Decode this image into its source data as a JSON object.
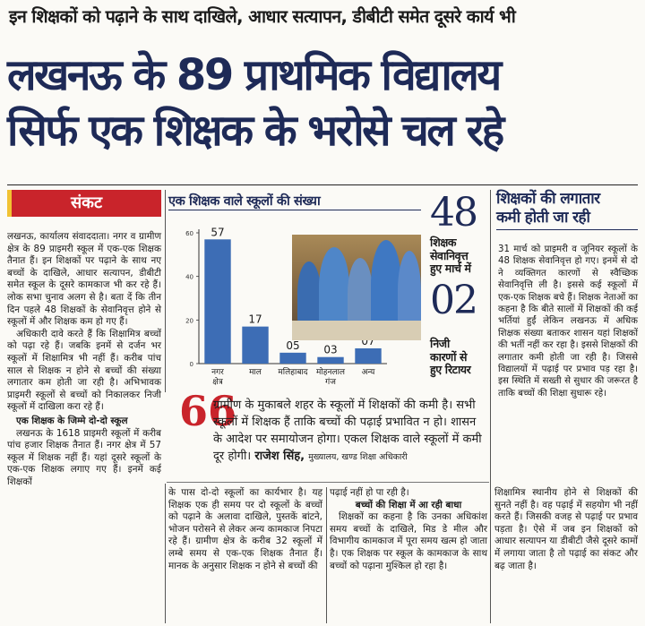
{
  "kicker": "इन शिक्षकों को पढ़ाने के साथ दाखिले, आधार सत्यापन, डीबीटी समेत दूसरे कार्य भी",
  "headline": {
    "line1": "लखनऊ के 89 प्राथमिक विद्यालय",
    "line2": "सिर्फ एक शिक्षक के भरोसे चल रहे"
  },
  "section_tag": "संकट",
  "left_column": {
    "p1": "लखनऊ, कार्यालय संवाददाता। नगर व ग्रामीण क्षेत्र के 89 प्राइमरी स्कूल में एक-एक शिक्षक तैनात हैं। इन शिक्षकों पर पढ़ाने के साथ नए बच्चों के दाखिले, आधार सत्यापन, डीबीटी समेत स्कूल के दूसरे कामकाज भी कर रहे हैं। लोक सभा चुनाव अलग से है। बता दें कि तीन दिन पहले 48 शिक्षकों के सेवानिवृत्त होने से स्कूलों में और शिक्षक कम हो गए हैं।",
    "p2": "अधिकारी दावे करते हैं कि शिक्षामित्र बच्चों को पढ़ा रहे हैं। जबकि इनमें से दर्जन भर स्कूलों में शिक्षामित्र भी नहीं हैं। करीब पांच साल से शिक्षक न होने से बच्चों की संख्या लगातार कम होती जा रही है। अभिभावक प्राइमरी स्कूलों से बच्चों को निकालकर निजी स्कूलों में दाखिला करा रहे हैं।",
    "subhead": "एक शिक्षक के जिम्मे दो-दो स्कूल",
    "p3": "लखनऊ के 1618 प्राइमरी स्कूलों में करीब पांच हजार शिक्षक तैनात हैं। नगर क्षेत्र में 57 स्कूल में शिक्षक नहीं हैं। यहां दूसरे स्कूलों के एक-एक शिक्षक लगाए गए हैं। इनमें कई शिक्षकों"
  },
  "chart_data": {
    "type": "bar",
    "title": "एक शिक्षक वाले स्कूलों की संख्या",
    "categories": [
      "नगर क्षेत्र",
      "माल",
      "मलिहाबाद",
      "मोहनलाल गंज",
      "अन्य"
    ],
    "values": [
      57,
      17,
      5,
      3,
      7
    ],
    "value_labels": [
      "57",
      "17",
      "05",
      "03",
      "07"
    ],
    "ylim": [
      0,
      60
    ],
    "yticks": [
      "60",
      "40",
      "20",
      "0"
    ],
    "color": "#3d6db5"
  },
  "stats": {
    "retired_num": "48",
    "retired_label": [
      "शिक्षक",
      "सेवानिवृत्त",
      "हुए मार्च में"
    ],
    "private_num": "02",
    "private_label": [
      "निजी",
      "कारणों से",
      "हुए रिटायर"
    ]
  },
  "right_column": {
    "title_line1": "शिक्षकों की लगातार",
    "title_line2": "कमी होती जा रही",
    "p1": "31 मार्च को प्राइमरी व जूनियर स्कूलों के 48 शिक्षक सेवानिवृत्त हो गए। इनमें से दो ने व्यक्तिगत कारणों से स्वैच्छिक सेवानिवृत्ति ली है। इससे कई स्कूलों में एक-एक शिक्षक बचे हैं। शिक्षक नेताओं का कहना है कि बीते सालों में शिक्षकों की कई भर्तियां हुईं लेकिन लखनऊ में अधिक शिक्षक संख्या बताकर शासन यहां शिक्षकों की भर्ती नहीं कर रहा है। इससे शिक्षकों की लगातार कमी होती जा रही है। जिससे विद्यालयों में पढ़ाई पर प्रभाव पड़ रहा है। इस स्थिति में सख्ती से सुधार की जरूरत है ताकि बच्चों की शिक्षा सुधारू रहे।"
  },
  "quote": {
    "mark": "66",
    "text": "ग्रामीण के मुकाबले शहर के स्कूलों में शिक्षकों की कमी है। सभी स्कूलों में शिक्षक हैं ताकि बच्चों की पढ़ाई प्रभावित न हो। शासन के आदेश पर समायोजन होगा। एकल शिक्षक वाले स्कूलों में कमी दूर होगी।",
    "author": "राजेश सिंह,",
    "role": "मुख्यालय, खण्ड शिक्षा अधिकारी"
  },
  "bottom": {
    "col2": "के पास दो-दो स्कूलों का कार्यभार है। यह शिक्षक एक ही समय पर दो स्कूलों के बच्चों को पढ़ाने के अलावा दाखिले, पुस्तकें बांटने, भोजन परोसने से लेकर अन्य कामकाज निपटा रहे हैं। ग्रामीण क्षेत्र के करीब 32 स्कूलों में लम्बे समय से एक-एक शिक्षक तैनात हैं। मानक के अनुसार शिक्षक न होने से बच्चों की",
    "col3_lead": "पढ़ाई नहीं हो पा रही है।",
    "col3_sub": "बच्चों की शिक्षा में आ रही बाधा",
    "col3": "शिक्षकों का कहना है कि उनका अधिकांश समय बच्चों के दाखिले, मिड डे मील और विभागीय कामकाज में पूरा समय खत्म हो जाता है। एक शिक्षक पर स्कूल के कामकाज के साथ बच्चों को पढ़ाना मुश्किल हो रहा है।",
    "col4": "शिक्षामित्र स्थानीय होने से शिक्षकों की सुनते नहीं है। वह पढ़ाई में सहयोग भी नहीं करते हैं। जिसकी वजह से पढ़ाई पर प्रभाव पड़ता है। ऐसे में जब इन शिक्षकों को आधार सत्यापन या डीबीटी जैसे दूसरे कामों में लगाया जाता है तो पढ़ाई का संकट और बढ़ जाता है।"
  }
}
